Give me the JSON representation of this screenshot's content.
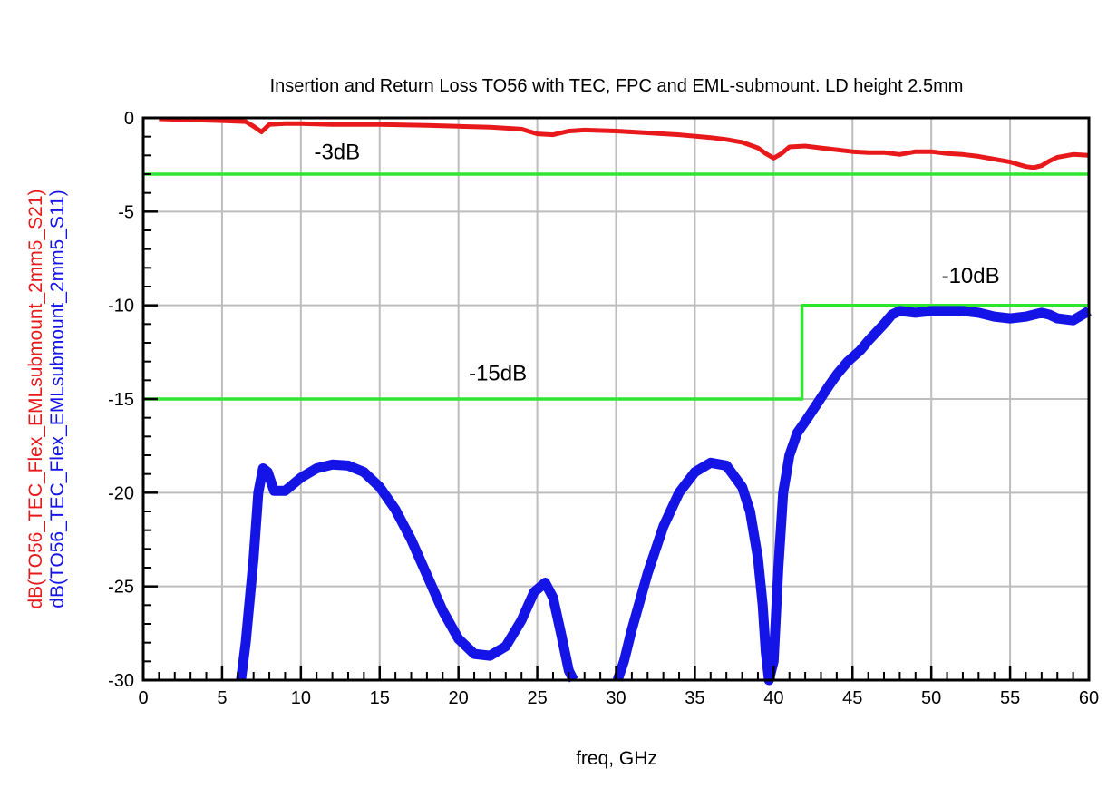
{
  "chart_data": {
    "type": "line",
    "title": "Insertion and Return Loss TO56 with TEC, FPC and EML-submount. LD height 2.5mm",
    "xlabel": "freq, GHz",
    "ylabel_lines": [
      "dB(TO56_TEC_Flex_EMLsubmount_2mm5_S21)",
      "dB(TO56_TEC_Flex_EMLsubmount_2mm5_S11)"
    ],
    "xlim": [
      0,
      60
    ],
    "ylim": [
      -30,
      0
    ],
    "x_ticks": [
      0,
      5,
      10,
      15,
      20,
      25,
      30,
      35,
      40,
      45,
      50,
      55,
      60
    ],
    "y_ticks": [
      0,
      -5,
      -10,
      -15,
      -20,
      -25,
      -30
    ],
    "grid": true,
    "colors": {
      "s21": "#e8191b",
      "s11": "#1414e6",
      "limit": "#2ee62e",
      "grid": "#bdbdbd"
    },
    "series": [
      {
        "key": "s21",
        "x": [
          1,
          3,
          5,
          6.5,
          7,
          7.5,
          8,
          9,
          10,
          12,
          15,
          18,
          20,
          22,
          24,
          25,
          26,
          27,
          28,
          30,
          32,
          34,
          36,
          37,
          38,
          39,
          39.5,
          40,
          40.5,
          41,
          42,
          43,
          44,
          45,
          46,
          47,
          48,
          49,
          50,
          51,
          52,
          53,
          54,
          55,
          56,
          56.5,
          57,
          57.5,
          58,
          59,
          60
        ],
        "y": [
          -0.05,
          -0.1,
          -0.15,
          -0.2,
          -0.45,
          -0.75,
          -0.35,
          -0.3,
          -0.3,
          -0.35,
          -0.35,
          -0.4,
          -0.45,
          -0.5,
          -0.6,
          -0.85,
          -0.9,
          -0.7,
          -0.65,
          -0.7,
          -0.8,
          -0.9,
          -1.05,
          -1.15,
          -1.3,
          -1.6,
          -1.9,
          -2.15,
          -1.9,
          -1.55,
          -1.5,
          -1.6,
          -1.7,
          -1.8,
          -1.85,
          -1.85,
          -1.95,
          -1.8,
          -1.8,
          -1.9,
          -1.95,
          -2.05,
          -2.2,
          -2.35,
          -2.6,
          -2.65,
          -2.55,
          -2.3,
          -2.1,
          -1.95,
          -2.0
        ]
      },
      {
        "key": "s11",
        "x": [
          6.2,
          6.5,
          7,
          7.3,
          7.6,
          7.9,
          8.3,
          9,
          10,
          11,
          12,
          13,
          14,
          15,
          16,
          17,
          18,
          19,
          20,
          21,
          22,
          23,
          24,
          24.8,
          25.5,
          26,
          26.5,
          27,
          27.3,
          30.1,
          30.5,
          31,
          32,
          33,
          34,
          35,
          36,
          37,
          38,
          38.5,
          39,
          39.3,
          39.5,
          39.7,
          40,
          40.3,
          40.6,
          41,
          41.5,
          42,
          42.8,
          43.5,
          44,
          44.7,
          45.5,
          46,
          47,
          47.5,
          48,
          49,
          50,
          51,
          52,
          53,
          54,
          55,
          56,
          57,
          57.5,
          58,
          59,
          60
        ],
        "y": [
          -30,
          -28,
          -23.5,
          -20,
          -18.7,
          -18.9,
          -19.9,
          -19.9,
          -19.2,
          -18.7,
          -18.5,
          -18.55,
          -18.9,
          -19.7,
          -20.9,
          -22.5,
          -24.4,
          -26.3,
          -27.8,
          -28.6,
          -28.7,
          -28.2,
          -26.8,
          -25.3,
          -24.8,
          -25.6,
          -27.5,
          -29.5,
          -30,
          -30,
          -29,
          -27.3,
          -24.3,
          -21.8,
          -20,
          -18.9,
          -18.4,
          -18.55,
          -19.7,
          -21,
          -23.5,
          -26,
          -28.5,
          -30,
          -29,
          -24,
          -20,
          -18,
          -16.8,
          -16.2,
          -15.2,
          -14.3,
          -13.7,
          -13,
          -12.4,
          -11.9,
          -11.0,
          -10.5,
          -10.3,
          -10.4,
          -10.3,
          -10.3,
          -10.3,
          -10.4,
          -10.6,
          -10.7,
          -10.6,
          -10.4,
          -10.5,
          -10.7,
          -10.8,
          -10.3
        ]
      },
      {
        "key": "limit3",
        "x": [
          0,
          60
        ],
        "y": [
          -3,
          -3
        ]
      },
      {
        "key": "limit15_10",
        "x": [
          0,
          41.8,
          41.8,
          60
        ],
        "y": [
          -15,
          -15,
          -10,
          -10
        ]
      }
    ],
    "annotations": [
      {
        "text": "-3dB",
        "x": 12.3,
        "y": -2.2
      },
      {
        "text": "-10dB",
        "x": 52.5,
        "y": -8.8
      },
      {
        "text": "-15dB",
        "x": 22.5,
        "y": -14.0
      }
    ]
  }
}
